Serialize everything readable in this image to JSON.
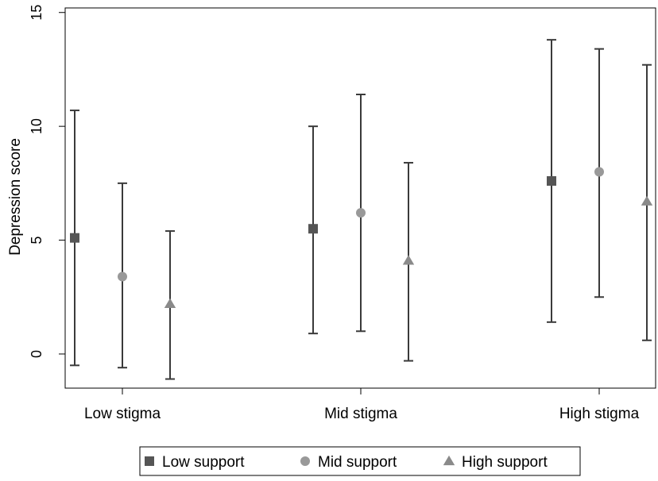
{
  "chart_data": {
    "type": "scatter",
    "title": "",
    "xlabel": "",
    "ylabel": "Depression score",
    "ylim": [
      -1.5,
      15.2
    ],
    "yticks": [
      0,
      5,
      10,
      15
    ],
    "categories": [
      "Low stigma",
      "Mid stigma",
      "High stigma"
    ],
    "grid": false,
    "legend_position": "bottom",
    "series": [
      {
        "name": "Low support",
        "marker": "square",
        "color": "#555555",
        "values": [
          5.1,
          5.5,
          7.6
        ],
        "lower": [
          -0.5,
          0.9,
          1.4
        ],
        "upper": [
          10.7,
          10.0,
          13.8
        ]
      },
      {
        "name": "Mid support",
        "marker": "circle",
        "color": "#999999",
        "values": [
          3.4,
          6.2,
          8.0
        ],
        "lower": [
          -0.6,
          1.0,
          2.5
        ],
        "upper": [
          7.5,
          11.4,
          13.4
        ]
      },
      {
        "name": "High support",
        "marker": "triangle",
        "color": "#8a8a8a",
        "values": [
          2.2,
          4.1,
          6.7
        ],
        "lower": [
          -1.1,
          -0.3,
          0.6
        ],
        "upper": [
          5.4,
          8.4,
          12.7
        ]
      }
    ]
  }
}
